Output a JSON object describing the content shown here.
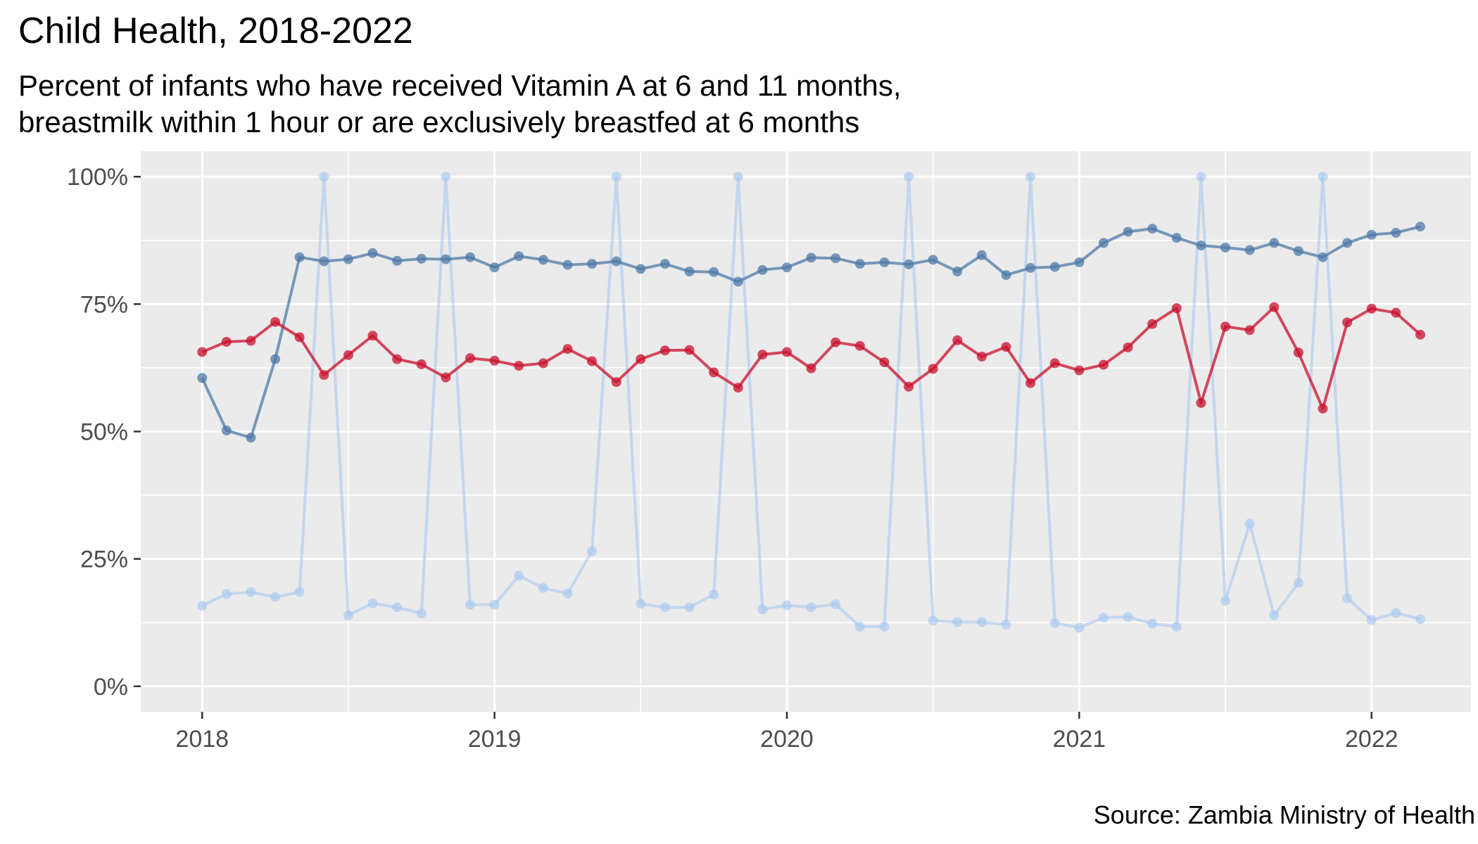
{
  "title": "Child Health, 2018-2022",
  "subtitle_lines": [
    "Percent of infants who have received Vitamin A at 6 and 11 months,",
    "breastmilk within 1 hour or are exclusively breastfed at 6 months"
  ],
  "caption": "Source: Zambia Ministry of Health",
  "colors": {
    "panel_background": "#EBEBEB",
    "gridline": "#FFFFFF",
    "tick_text": "#4D4D4D"
  },
  "chart_data": {
    "type": "line",
    "title": "Child Health, 2018-2022",
    "xlabel": "",
    "ylabel": "",
    "x_unit": "year",
    "x_ticks": [
      2018,
      2019,
      2020,
      2021,
      2022
    ],
    "x_tick_labels": [
      "2018",
      "2019",
      "2020",
      "2021",
      "2022"
    ],
    "xlim": [
      2017.79,
      2022.34
    ],
    "ylim": [
      -5,
      105
    ],
    "y_ticks": [
      0,
      25,
      50,
      75,
      100
    ],
    "y_tick_labels": [
      "0%",
      "25%",
      "50%",
      "75%",
      "100%"
    ],
    "grid": true,
    "legend": "none",
    "x": [
      2018.0,
      2018.0833,
      2018.1667,
      2018.25,
      2018.3333,
      2018.4167,
      2018.5,
      2018.5833,
      2018.6667,
      2018.75,
      2018.8333,
      2018.9167,
      2019.0,
      2019.0833,
      2019.1667,
      2019.25,
      2019.3333,
      2019.4167,
      2019.5,
      2019.5833,
      2019.6667,
      2019.75,
      2019.8333,
      2019.9167,
      2020.0,
      2020.0833,
      2020.1667,
      2020.25,
      2020.3333,
      2020.4167,
      2020.5,
      2020.5833,
      2020.6667,
      2020.75,
      2020.8333,
      2020.9167,
      2021.0,
      2021.0833,
      2021.1667,
      2021.25,
      2021.3333,
      2021.4167,
      2021.5,
      2021.5833,
      2021.6667,
      2021.75,
      2021.8333,
      2021.9167,
      2022.0,
      2022.0833,
      2022.1667
    ],
    "series": [
      {
        "color": "#4E79A7",
        "values": [
          60.5,
          50.2,
          48.8,
          64.2,
          84.2,
          83.4,
          83.8,
          85.0,
          83.5,
          83.9,
          83.8,
          84.2,
          82.2,
          84.4,
          83.7,
          82.7,
          82.9,
          83.4,
          81.9,
          82.9,
          81.4,
          81.3,
          79.4,
          81.7,
          82.2,
          84.1,
          84.0,
          82.9,
          83.2,
          82.8,
          83.7,
          81.4,
          84.6,
          80.7,
          82.1,
          82.3,
          83.2,
          87.0,
          89.2,
          89.8,
          88.0,
          86.5,
          86.1,
          85.6,
          87.0,
          85.4,
          84.2,
          87.0,
          88.6,
          89.0,
          90.2
        ]
      },
      {
        "color": "#C8102E",
        "values": [
          65.6,
          67.6,
          67.8,
          71.5,
          68.5,
          61.1,
          65.0,
          68.8,
          64.2,
          63.2,
          60.6,
          64.4,
          63.9,
          62.9,
          63.4,
          66.2,
          63.8,
          59.7,
          64.2,
          65.9,
          66.0,
          61.6,
          58.6,
          65.1,
          65.6,
          62.4,
          67.5,
          66.8,
          63.6,
          58.8,
          62.3,
          67.9,
          64.7,
          66.6,
          59.5,
          63.4,
          62.0,
          63.1,
          66.5,
          71.1,
          74.2,
          55.6,
          70.6,
          69.9,
          74.4,
          65.5,
          54.5,
          71.4,
          74.1,
          73.3,
          69.0
        ]
      },
      {
        "color": "#A8C8F0",
        "values": [
          15.8,
          18.1,
          18.5,
          17.5,
          18.5,
          100,
          13.9,
          16.3,
          15.5,
          14.3,
          100,
          16.0,
          16.0,
          21.7,
          19.3,
          18.2,
          26.5,
          100,
          16.2,
          15.5,
          15.5,
          18.0,
          100,
          15.1,
          15.9,
          15.5,
          16.1,
          11.7,
          11.7,
          100,
          12.9,
          12.6,
          12.6,
          12.1,
          100,
          12.4,
          11.5,
          13.5,
          13.6,
          12.3,
          11.7,
          100,
          16.8,
          31.9,
          13.9,
          20.3,
          100,
          17.3,
          13.0,
          14.4,
          13.2
        ]
      }
    ]
  }
}
